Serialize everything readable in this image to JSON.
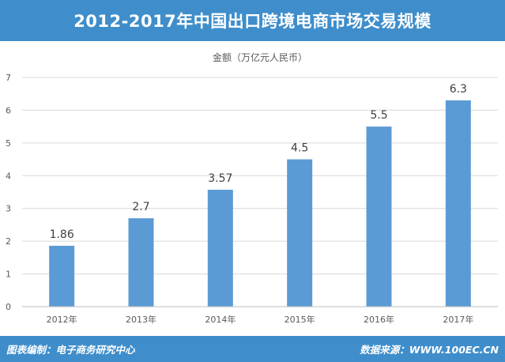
{
  "header": {
    "title": "2012-2017年中国出口跨境电商市场交易规模"
  },
  "footer": {
    "editor": "图表编制：电子商务研究中心",
    "source": "数据来源：WWW.100EC.CN"
  },
  "chart_data": {
    "type": "bar",
    "title": "2012-2017年中国出口跨境电商市场交易规模",
    "series_label": "金额（万亿元人民币）",
    "categories": [
      "2012年",
      "2013年",
      "2014年",
      "2015年",
      "2016年",
      "2017年"
    ],
    "values": [
      1.86,
      2.7,
      3.57,
      4.5,
      5.5,
      6.3
    ],
    "value_labels": [
      "1.86",
      "2.7",
      "3.57",
      "4.5",
      "5.5",
      "6.3"
    ],
    "ylim": [
      0,
      7
    ],
    "yticks": [
      "0",
      "1",
      "2",
      "3",
      "4",
      "5",
      "6",
      "7"
    ],
    "grid": true,
    "colors": {
      "bar": "#5b9bd5",
      "grid": "#d9d9d9",
      "text": "#595959",
      "header": "#3f8ecb"
    }
  }
}
